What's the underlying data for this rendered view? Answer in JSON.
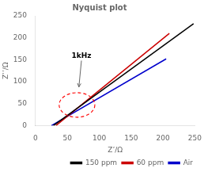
{
  "chart_data": {
    "type": "line",
    "title": "Nyquist plot",
    "xlabel": "Z’/Ω",
    "ylabel": "Z’’/Ω",
    "xlim": [
      0,
      250
    ],
    "ylim": [
      0,
      250
    ],
    "xticks": [
      0,
      50,
      100,
      150,
      200,
      250
    ],
    "yticks": [
      0,
      50,
      100,
      150,
      200,
      250
    ],
    "grid": false,
    "legend": "lower right",
    "series": [
      {
        "name": "150 ppm",
        "color": "#000000",
        "x": [
          28,
          248
        ],
        "values": [
          0,
          232
        ]
      },
      {
        "name": "60 ppm",
        "color": "#cc0000",
        "x": [
          32,
          210
        ],
        "values": [
          0,
          210
        ]
      },
      {
        "name": "Air",
        "color": "#0000cc",
        "x": [
          25,
          205
        ],
        "values": [
          0,
          152
        ]
      }
    ],
    "annotations": [
      {
        "text": "1kHz",
        "x": 72,
        "y": 148,
        "arrow_x": 68,
        "arrow_y": 88
      }
    ],
    "circle": {
      "x": 65,
      "y": 47,
      "r": 28,
      "color": "red"
    }
  }
}
